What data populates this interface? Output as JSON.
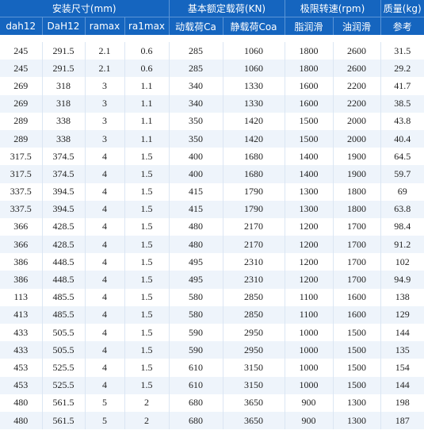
{
  "header": {
    "groups": [
      "安装尺寸(mm)",
      "基本额定载荷(KN)",
      "极限转速(rpm)",
      "质量(kg)"
    ],
    "columns": [
      "dah12",
      "DaH12",
      "ramax",
      "ra1max",
      "动载荷Ca",
      "静载荷Coa",
      "脂润滑",
      "油润滑",
      "参考"
    ]
  },
  "rows": [
    [
      "245",
      "291.5",
      "2.1",
      "0.6",
      "285",
      "1060",
      "1800",
      "2600",
      "31.5"
    ],
    [
      "245",
      "291.5",
      "2.1",
      "0.6",
      "285",
      "1060",
      "1800",
      "2600",
      "29.2"
    ],
    [
      "269",
      "318",
      "3",
      "1.1",
      "340",
      "1330",
      "1600",
      "2200",
      "41.7"
    ],
    [
      "269",
      "318",
      "3",
      "1.1",
      "340",
      "1330",
      "1600",
      "2200",
      "38.5"
    ],
    [
      "289",
      "338",
      "3",
      "1.1",
      "350",
      "1420",
      "1500",
      "2000",
      "43.8"
    ],
    [
      "289",
      "338",
      "3",
      "1.1",
      "350",
      "1420",
      "1500",
      "2000",
      "40.4"
    ],
    [
      "317.5",
      "374.5",
      "4",
      "1.5",
      "400",
      "1680",
      "1400",
      "1900",
      "64.5"
    ],
    [
      "317.5",
      "374.5",
      "4",
      "1.5",
      "400",
      "1680",
      "1400",
      "1900",
      "59.7"
    ],
    [
      "337.5",
      "394.5",
      "4",
      "1.5",
      "415",
      "1790",
      "1300",
      "1800",
      "69"
    ],
    [
      "337.5",
      "394.5",
      "4",
      "1.5",
      "415",
      "1790",
      "1300",
      "1800",
      "63.8"
    ],
    [
      "366",
      "428.5",
      "4",
      "1.5",
      "480",
      "2170",
      "1200",
      "1700",
      "98.4"
    ],
    [
      "366",
      "428.5",
      "4",
      "1.5",
      "480",
      "2170",
      "1200",
      "1700",
      "91.2"
    ],
    [
      "386",
      "448.5",
      "4",
      "1.5",
      "495",
      "2310",
      "1200",
      "1700",
      "102"
    ],
    [
      "386",
      "448.5",
      "4",
      "1.5",
      "495",
      "2310",
      "1200",
      "1700",
      "94.9"
    ],
    [
      "113",
      "485.5",
      "4",
      "1.5",
      "580",
      "2850",
      "1100",
      "1600",
      "138"
    ],
    [
      "413",
      "485.5",
      "4",
      "1.5",
      "580",
      "2850",
      "1100",
      "1600",
      "129"
    ],
    [
      "433",
      "505.5",
      "4",
      "1.5",
      "590",
      "2950",
      "1000",
      "1500",
      "144"
    ],
    [
      "433",
      "505.5",
      "4",
      "1.5",
      "590",
      "2950",
      "1000",
      "1500",
      "135"
    ],
    [
      "453",
      "525.5",
      "4",
      "1.5",
      "610",
      "3150",
      "1000",
      "1500",
      "154"
    ],
    [
      "453",
      "525.5",
      "4",
      "1.5",
      "610",
      "3150",
      "1000",
      "1500",
      "144"
    ],
    [
      "480",
      "561.5",
      "5",
      "2",
      "680",
      "3650",
      "900",
      "1300",
      "198"
    ],
    [
      "480",
      "561.5",
      "5",
      "2",
      "680",
      "3650",
      "900",
      "1300",
      "187"
    ]
  ]
}
